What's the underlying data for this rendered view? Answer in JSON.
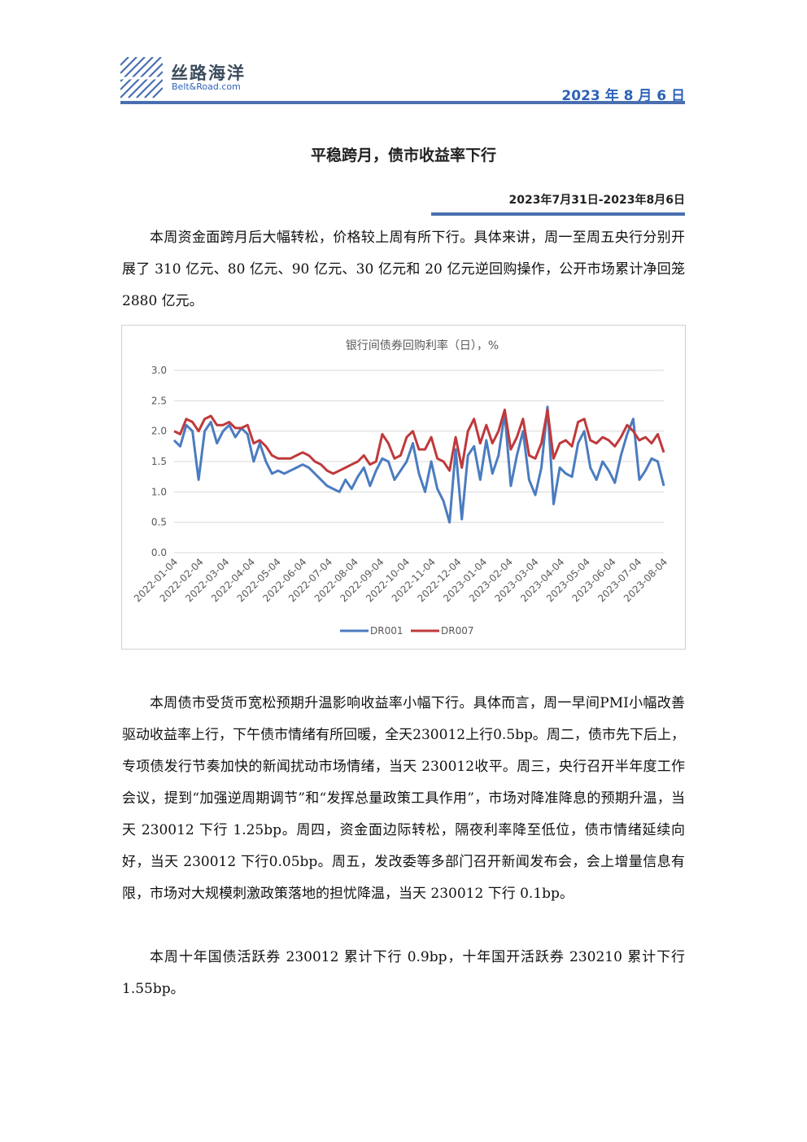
{
  "header": {
    "brand_cn": "丝路海洋",
    "brand_en": "Belt&Road.com",
    "date": "2023 年 8 月 6 日"
  },
  "article": {
    "title": "平稳跨月，债市收益率下行",
    "date_range": "2023年7月31日-2023年8月6日",
    "para1": "本周资金面跨月后大幅转松，价格较上周有所下行。具体来讲，周一至周五央行分别开展了 310 亿元、80 亿元、90 亿元、30 亿元和 20 亿元逆回购操作，公开市场累计净回笼 2880 亿元。",
    "para2": "本周债市受货币宽松预期升温影响收益率小幅下行。具体而言，周一早间PMI小幅改善驱动收益率上行，下午债市情绪有所回暖，全天230012上行0.5bp。周二，债市先下后上，专项债发行节奏加快的新闻扰动市场情绪，当天 230012收平。周三，央行召开半年度工作会议，提到“加强逆周期调节”和“发挥总量政策工具作用”，市场对降准降息的预期升温，当天 230012 下行 1.25bp。周四，资金面边际转松，隔夜利率降至低位，债市情绪延续向好，当天 230012 下行0.05bp。周五，发改委等多部门召开新闻发布会，会上增量信息有限，市场对大规模刺激政策落地的担忧降温，当天 230012 下行 0.1bp。",
    "para3": "本周十年国债活跃券 230012 累计下行 0.9bp，十年国开活跃券 230210 累计下行 1.55bp。"
  },
  "chart_data": {
    "type": "line",
    "title": "银行间债券回购利率（日），%",
    "ylim": [
      0,
      3
    ],
    "y_ticks": [
      "0.0",
      "0.5",
      "1.0",
      "1.5",
      "2.0",
      "2.5",
      "3.0"
    ],
    "x_tick_labels": [
      "2022-01-04",
      "2022-02-04",
      "2022-03-04",
      "2022-04-04",
      "2022-05-04",
      "2022-06-04",
      "2022-07-04",
      "2022-08-04",
      "2022-09-04",
      "2022-10-04",
      "2022-11-04",
      "2022-12-04",
      "2023-01-04",
      "2023-02-04",
      "2023-03-04",
      "2023-04-04",
      "2023-05-04",
      "2023-06-04",
      "2023-07-04",
      "2023-08-04"
    ],
    "legend_position": "bottom",
    "grid": true,
    "series": [
      {
        "name": "DR001",
        "color": "#4a7cc0",
        "values": [
          1.85,
          1.75,
          2.1,
          2.0,
          1.2,
          2.0,
          2.15,
          1.8,
          2.0,
          2.1,
          1.9,
          2.05,
          1.95,
          1.5,
          1.8,
          1.5,
          1.3,
          1.35,
          1.3,
          1.35,
          1.4,
          1.45,
          1.4,
          1.3,
          1.2,
          1.1,
          1.05,
          1.0,
          1.2,
          1.05,
          1.25,
          1.4,
          1.1,
          1.35,
          1.55,
          1.5,
          1.2,
          1.35,
          1.5,
          1.8,
          1.3,
          1.0,
          1.5,
          1.05,
          0.85,
          0.5,
          1.7,
          0.55,
          1.6,
          1.75,
          1.2,
          1.85,
          1.3,
          1.6,
          2.3,
          1.1,
          1.6,
          2.0,
          1.2,
          0.95,
          1.4,
          2.4,
          0.8,
          1.4,
          1.3,
          1.25,
          1.8,
          2.0,
          1.4,
          1.2,
          1.5,
          1.35,
          1.15,
          1.6,
          1.95,
          2.2,
          1.2,
          1.35,
          1.55,
          1.5,
          1.1
        ]
      },
      {
        "name": "DR007",
        "color": "#c0393b",
        "values": [
          2.0,
          1.95,
          2.2,
          2.15,
          2.0,
          2.2,
          2.25,
          2.1,
          2.1,
          2.15,
          2.05,
          2.05,
          2.1,
          1.8,
          1.85,
          1.75,
          1.6,
          1.55,
          1.55,
          1.55,
          1.6,
          1.65,
          1.6,
          1.5,
          1.45,
          1.35,
          1.3,
          1.35,
          1.4,
          1.45,
          1.5,
          1.6,
          1.45,
          1.5,
          1.95,
          1.8,
          1.55,
          1.6,
          1.9,
          2.0,
          1.7,
          1.7,
          1.9,
          1.55,
          1.5,
          1.35,
          1.9,
          1.4,
          2.0,
          2.2,
          1.8,
          2.1,
          1.8,
          2.0,
          2.35,
          1.7,
          1.9,
          2.2,
          1.6,
          1.55,
          1.8,
          2.35,
          1.55,
          1.8,
          1.85,
          1.75,
          2.15,
          2.2,
          1.85,
          1.8,
          1.9,
          1.85,
          1.75,
          1.9,
          2.1,
          2.0,
          1.85,
          1.9,
          1.8,
          1.95,
          1.65
        ]
      }
    ]
  }
}
